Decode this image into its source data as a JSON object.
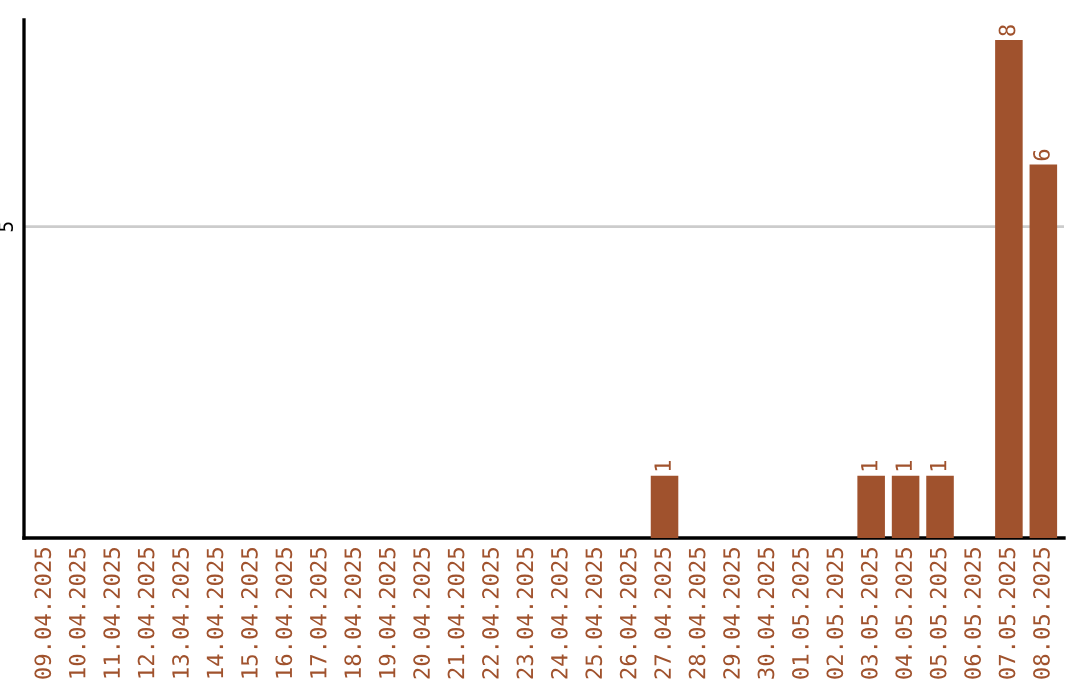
{
  "chart_data": {
    "type": "bar",
    "categories": [
      "09.04.2025",
      "10.04.2025",
      "11.04.2025",
      "12.04.2025",
      "13.04.2025",
      "14.04.2025",
      "15.04.2025",
      "16.04.2025",
      "17.04.2025",
      "18.04.2025",
      "19.04.2025",
      "20.04.2025",
      "21.04.2025",
      "22.04.2025",
      "23.04.2025",
      "24.04.2025",
      "25.04.2025",
      "26.04.2025",
      "27.04.2025",
      "28.04.2025",
      "29.04.2025",
      "30.04.2025",
      "01.05.2025",
      "02.05.2025",
      "03.05.2025",
      "04.05.2025",
      "05.05.2025",
      "06.05.2025",
      "07.05.2025",
      "08.05.2025"
    ],
    "values": [
      null,
      null,
      null,
      null,
      null,
      null,
      null,
      null,
      null,
      null,
      null,
      null,
      null,
      null,
      null,
      null,
      null,
      null,
      1,
      null,
      null,
      null,
      null,
      null,
      1,
      1,
      1,
      null,
      8,
      6
    ],
    "data_labels": true,
    "color": "#a0522d",
    "ref_lines": [
      {
        "axis": "y",
        "value": 5,
        "label": "5",
        "color": "#cccccc"
      }
    ]
  }
}
